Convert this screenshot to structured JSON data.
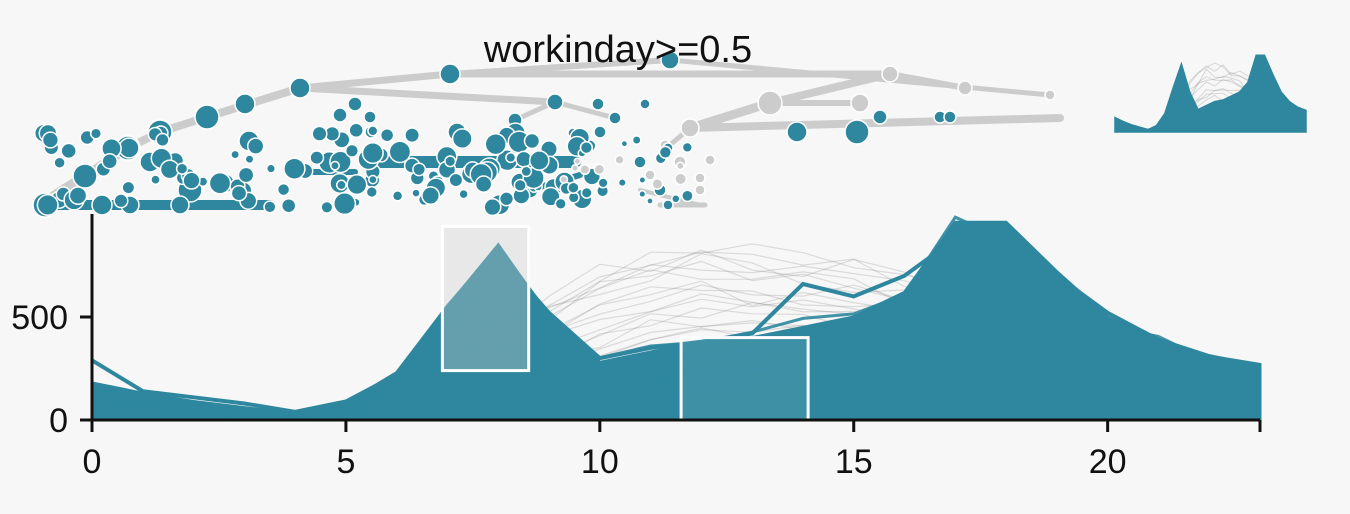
{
  "split_label": "workinday>=0.5",
  "colors": {
    "background": "#f7f7f7",
    "selected": "#2e879e",
    "unselected": "#cccccc",
    "context_lines": "#777777",
    "brush_fill": "#cccccc",
    "brush_stroke": "#ffffff",
    "axis": "#111111"
  },
  "chart_data": {
    "type": "line",
    "title": "",
    "xlabel": "",
    "ylabel": "",
    "x_ticks": [
      0,
      5,
      10,
      15,
      20
    ],
    "y_ticks": [
      0,
      500
    ],
    "xlim": [
      0,
      23
    ],
    "ylim": [
      0,
      1000
    ],
    "grid": false,
    "x": [
      0,
      1,
      2,
      3,
      4,
      5,
      6,
      7,
      8,
      9,
      10,
      11,
      12,
      13,
      14,
      15,
      16,
      17,
      18,
      19,
      20,
      21,
      22,
      23
    ],
    "series": [
      {
        "group": "selected-upper",
        "values": [
          180,
          130,
          90,
          60,
          30,
          80,
          230,
          550,
          850,
          500,
          280,
          330,
          380,
          400,
          450,
          500,
          620,
          960,
          960,
          720,
          500,
          380,
          310,
          270
        ]
      },
      {
        "group": "selected-lower",
        "values": [
          60,
          35,
          20,
          12,
          8,
          20,
          60,
          150,
          260,
          180,
          120,
          140,
          150,
          160,
          170,
          190,
          230,
          330,
          340,
          270,
          200,
          150,
          120,
          100
        ]
      },
      {
        "group": "selected-outlier",
        "values": [
          290,
          140,
          110,
          80,
          40,
          90,
          220,
          520,
          800,
          520,
          300,
          350,
          380,
          420,
          660,
          600,
          700,
          880,
          900,
          700,
          520,
          390,
          310,
          260
        ]
      },
      {
        "group": "context-upper",
        "values": [
          150,
          110,
          80,
          55,
          35,
          60,
          120,
          260,
          420,
          600,
          760,
          820,
          840,
          830,
          800,
          760,
          700,
          680,
          640,
          560,
          440,
          340,
          260,
          200
        ]
      },
      {
        "group": "context-lower",
        "values": [
          40,
          25,
          15,
          10,
          8,
          12,
          30,
          70,
          140,
          220,
          300,
          380,
          420,
          420,
          400,
          380,
          340,
          320,
          290,
          240,
          180,
          130,
          90,
          60
        ]
      }
    ],
    "brushes": [
      {
        "x": [
          6.9,
          8.6
        ],
        "y": [
          240,
          940
        ]
      },
      {
        "x": [
          11.6,
          14.1
        ],
        "y": [
          0,
          400
        ]
      }
    ],
    "lines_per_group": 18
  }
}
